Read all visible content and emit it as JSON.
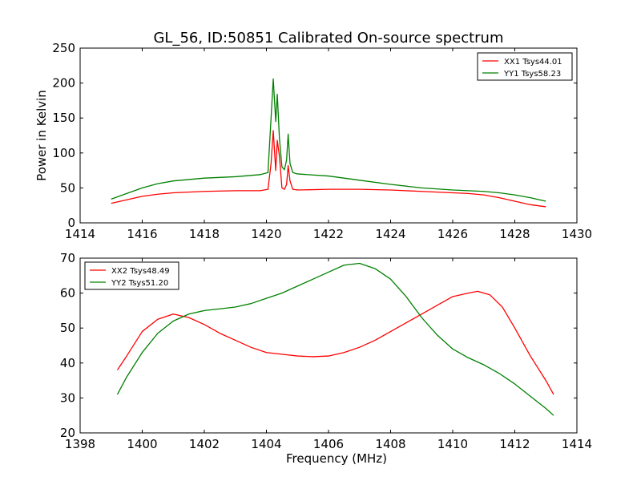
{
  "figure": {
    "title": "GL_56, ID:50851 Calibrated On-source spectrum"
  },
  "chart_data": [
    {
      "type": "line",
      "title": "GL_56, ID:50851 Calibrated On-source spectrum",
      "xlabel": "",
      "ylabel": "Power in Kelvin",
      "xlim": [
        1414,
        1430
      ],
      "ylim": [
        0,
        250
      ],
      "xticks": [
        1414,
        1416,
        1418,
        1420,
        1422,
        1424,
        1426,
        1428,
        1430
      ],
      "yticks": [
        0,
        50,
        100,
        150,
        200,
        250
      ],
      "grid": false,
      "legend": "top-right",
      "series": [
        {
          "name": "XX1 Tsys44.01",
          "color": "#ff0000",
          "x": [
            1415.0,
            1415.5,
            1416.0,
            1416.5,
            1417.0,
            1418.0,
            1419.0,
            1419.8,
            1420.05,
            1420.15,
            1420.22,
            1420.3,
            1420.35,
            1420.42,
            1420.5,
            1420.58,
            1420.65,
            1420.7,
            1420.76,
            1420.85,
            1421.0,
            1422.0,
            1423.0,
            1424.0,
            1425.0,
            1426.0,
            1426.5,
            1427.0,
            1427.5,
            1428.0,
            1428.5,
            1429.0
          ],
          "y": [
            28,
            33,
            38,
            41,
            43,
            45,
            46,
            46,
            48,
            85,
            132,
            75,
            118,
            95,
            50,
            48,
            55,
            82,
            60,
            48,
            47,
            48,
            48,
            47,
            45,
            43,
            42,
            40,
            36,
            31,
            26,
            23
          ]
        },
        {
          "name": "YY1 Tsys58.23",
          "color": "#008000",
          "x": [
            1415.0,
            1415.5,
            1416.0,
            1416.5,
            1417.0,
            1418.0,
            1419.0,
            1419.8,
            1420.05,
            1420.15,
            1420.22,
            1420.3,
            1420.35,
            1420.42,
            1420.5,
            1420.58,
            1420.65,
            1420.7,
            1420.76,
            1420.85,
            1421.0,
            1422.0,
            1423.0,
            1424.0,
            1425.0,
            1426.0,
            1426.5,
            1427.0,
            1427.5,
            1428.0,
            1428.5,
            1429.0
          ],
          "y": [
            34,
            42,
            50,
            56,
            60,
            64,
            66,
            69,
            72,
            150,
            206,
            145,
            184,
            120,
            80,
            76,
            90,
            127,
            85,
            72,
            70,
            67,
            61,
            55,
            50,
            47,
            46,
            45,
            43,
            40,
            36,
            31
          ]
        }
      ]
    },
    {
      "type": "line",
      "title": "",
      "xlabel": "Frequency (MHz)",
      "ylabel": "",
      "xlim": [
        1398,
        1414
      ],
      "ylim": [
        20,
        70
      ],
      "xticks": [
        1398,
        1400,
        1402,
        1404,
        1406,
        1408,
        1410,
        1412,
        1414
      ],
      "yticks": [
        20,
        30,
        40,
        50,
        60,
        70
      ],
      "grid": false,
      "legend": "top-left",
      "series": [
        {
          "name": "XX2 Tsys48.49",
          "color": "#ff0000",
          "x": [
            1399.2,
            1399.5,
            1400.0,
            1400.5,
            1401.0,
            1401.5,
            1402.0,
            1402.5,
            1403.0,
            1403.5,
            1404.0,
            1404.5,
            1405.0,
            1405.5,
            1406.0,
            1406.5,
            1407.0,
            1407.5,
            1408.0,
            1408.5,
            1409.0,
            1409.5,
            1410.0,
            1410.5,
            1410.8,
            1411.2,
            1411.6,
            1412.0,
            1412.5,
            1413.0,
            1413.25
          ],
          "y": [
            38,
            42,
            49,
            52.5,
            54,
            53,
            51,
            48.5,
            46.5,
            44.5,
            43,
            42.5,
            42,
            41.8,
            42,
            43,
            44.5,
            46.5,
            49,
            51.5,
            54,
            56.5,
            59,
            60,
            60.5,
            59.5,
            56,
            50,
            42,
            35,
            31
          ]
        },
        {
          "name": "YY2 Tsys51.20",
          "color": "#008000",
          "x": [
            1399.2,
            1399.5,
            1400.0,
            1400.5,
            1401.0,
            1401.5,
            1402.0,
            1402.5,
            1403.0,
            1403.5,
            1404.0,
            1404.5,
            1405.0,
            1405.5,
            1406.0,
            1406.5,
            1407.0,
            1407.5,
            1408.0,
            1408.5,
            1409.0,
            1409.5,
            1410.0,
            1410.5,
            1411.0,
            1411.5,
            1412.0,
            1412.5,
            1413.0,
            1413.25
          ],
          "y": [
            31,
            36,
            43,
            48.5,
            52,
            54,
            55,
            55.5,
            56,
            57,
            58.5,
            60,
            62,
            64,
            66,
            68,
            68.5,
            67,
            64,
            59,
            53,
            48,
            44,
            41.5,
            39.5,
            37,
            34,
            30.5,
            27,
            25
          ]
        }
      ]
    }
  ]
}
